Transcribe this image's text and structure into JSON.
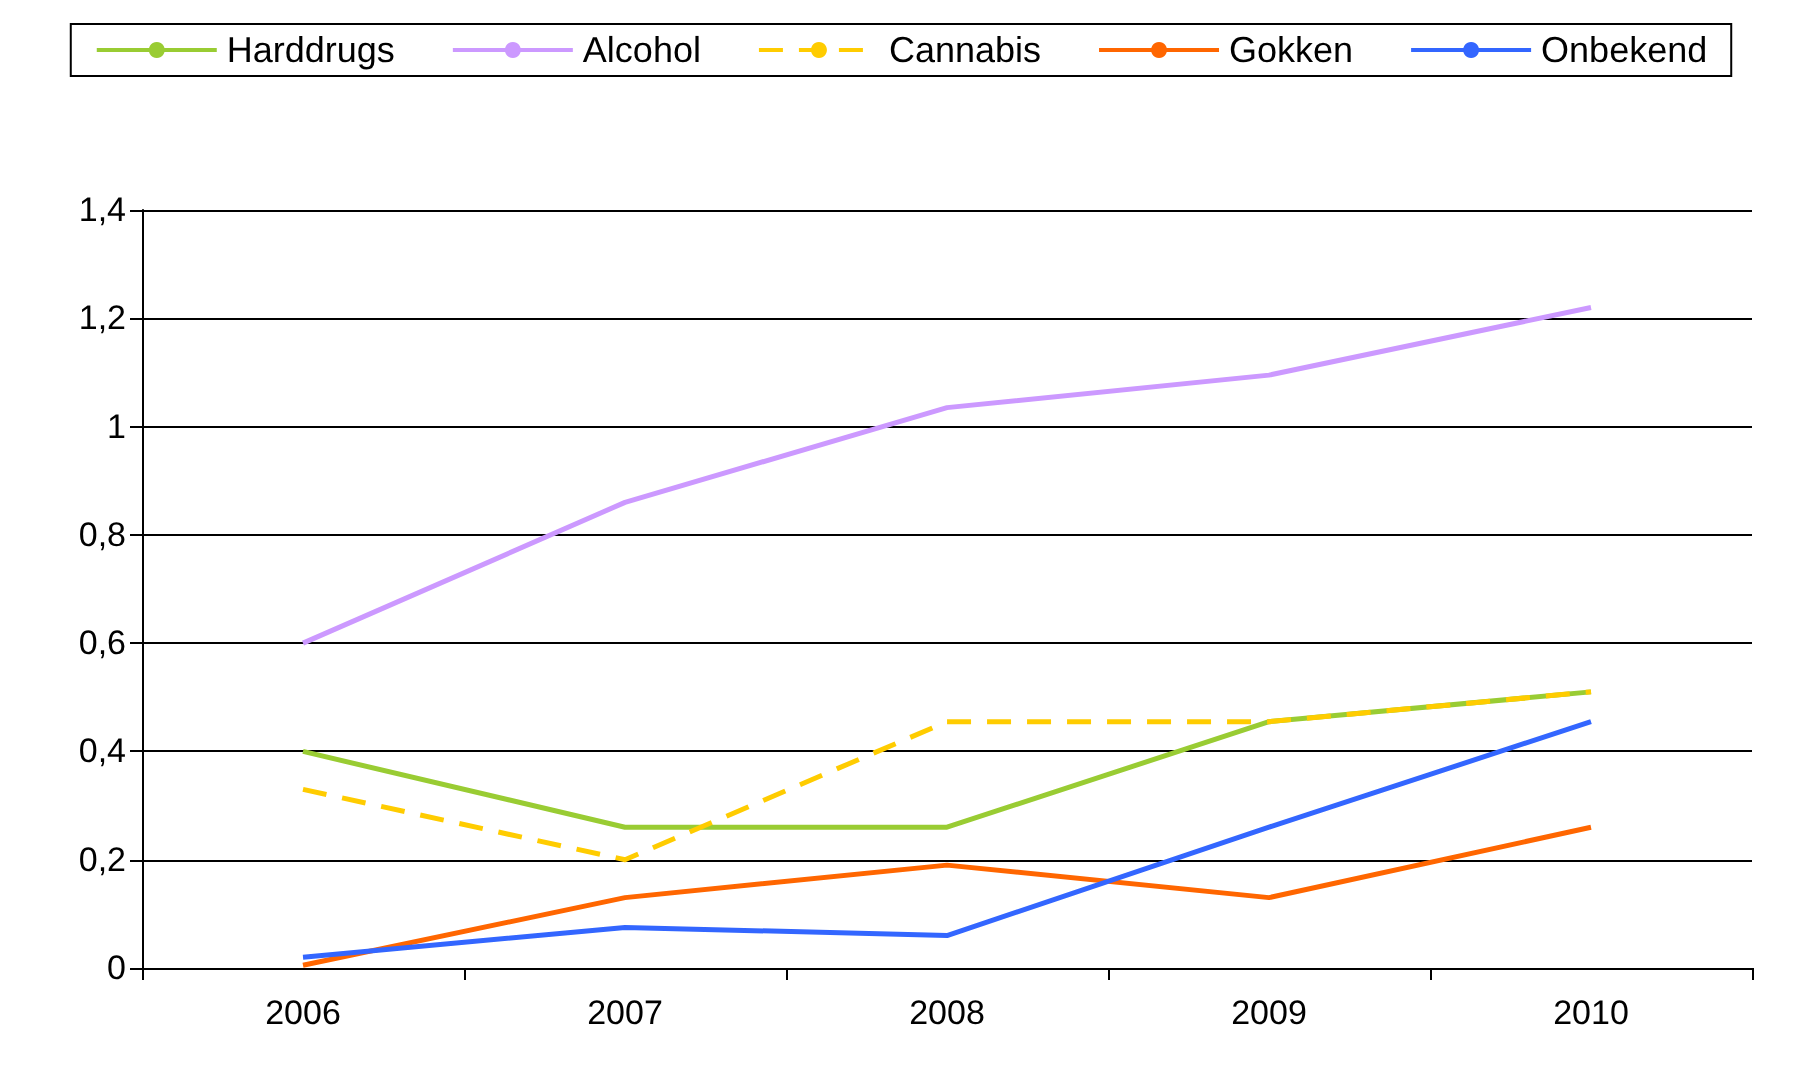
{
  "chart_data": {
    "type": "line",
    "categories": [
      "2006",
      "2007",
      "2008",
      "2009",
      "2010"
    ],
    "series": [
      {
        "name": "Harddrugs",
        "color": "#99cc33",
        "values": [
          0.4,
          0.26,
          0.26,
          0.455,
          0.51
        ]
      },
      {
        "name": "Alcohol",
        "color": "#cc99ff",
        "values": [
          0.6,
          0.86,
          1.035,
          1.095,
          1.22
        ]
      },
      {
        "name": "Cannabis",
        "color": "#ffcc00",
        "line_style": "dashed",
        "values": [
          0.33,
          0.2,
          0.455,
          0.455,
          0.51
        ]
      },
      {
        "name": "Gokken",
        "color": "#ff6600",
        "values": [
          0.005,
          0.13,
          0.19,
          0.13,
          0.26
        ]
      },
      {
        "name": "Onbekend",
        "color": "#3366ff",
        "values": [
          0.02,
          0.075,
          0.06,
          0.26,
          0.455
        ]
      }
    ],
    "ylim": [
      0,
      1.4
    ],
    "yticks": [
      0,
      {
        "value": 0.2,
        "label": "0,2"
      },
      {
        "value": 0.4,
        "label": "0,4"
      },
      {
        "value": 0.6,
        "label": "0,6"
      },
      {
        "value": 0.8,
        "label": "0,8"
      },
      1,
      {
        "value": 1.2,
        "label": "1,2"
      },
      {
        "value": 1.4,
        "label": "1,4"
      }
    ],
    "grid": "y",
    "legend": "top",
    "marker": "none",
    "line_style": "solid"
  }
}
